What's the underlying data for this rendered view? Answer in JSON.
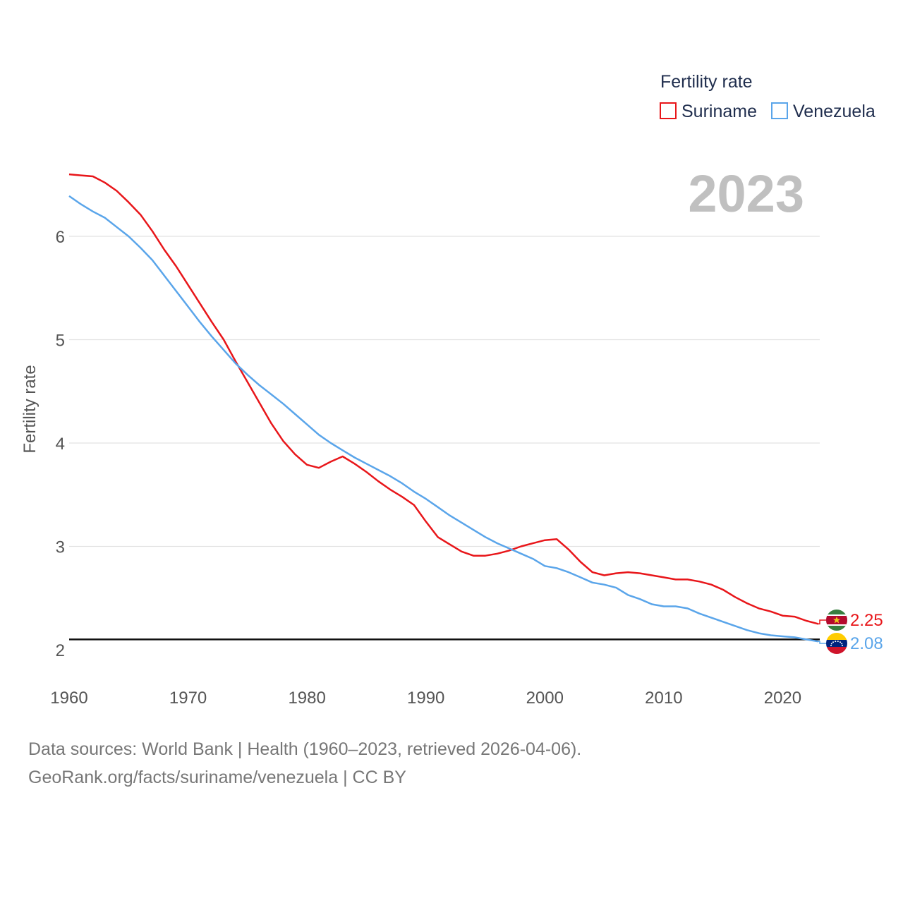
{
  "chart_data": {
    "type": "line",
    "title": "Fertility rate",
    "xlabel": "",
    "ylabel": "Fertility rate",
    "highlight_year": "2023",
    "xlim": [
      1960,
      2023
    ],
    "ylim": [
      1.8,
      6.6
    ],
    "x_ticks": [
      1960,
      1970,
      1980,
      1990,
      2000,
      2010,
      2020
    ],
    "y_ticks": [
      2,
      3,
      4,
      5,
      6
    ],
    "reference_line": {
      "y": 2.1
    },
    "legend_title": "Fertility rate",
    "legend_placement": "top-right",
    "x": [
      1960,
      1961,
      1962,
      1963,
      1964,
      1965,
      1966,
      1967,
      1968,
      1969,
      1970,
      1971,
      1972,
      1973,
      1974,
      1975,
      1976,
      1977,
      1978,
      1979,
      1980,
      1981,
      1982,
      1983,
      1984,
      1985,
      1986,
      1987,
      1988,
      1989,
      1990,
      1991,
      1992,
      1993,
      1994,
      1995,
      1996,
      1997,
      1998,
      1999,
      2000,
      2001,
      2002,
      2003,
      2004,
      2005,
      2006,
      2007,
      2008,
      2009,
      2010,
      2011,
      2012,
      2013,
      2014,
      2015,
      2016,
      2017,
      2018,
      2019,
      2020,
      2021,
      2022,
      2023
    ],
    "series": [
      {
        "name": "Suriname",
        "color": "#e8161a",
        "end_label": "2.25",
        "values": [
          6.6,
          6.59,
          6.58,
          6.52,
          6.44,
          6.33,
          6.21,
          6.05,
          5.87,
          5.71,
          5.53,
          5.35,
          5.17,
          5.0,
          4.79,
          4.59,
          4.39,
          4.19,
          4.02,
          3.89,
          3.79,
          3.76,
          3.82,
          3.87,
          3.8,
          3.72,
          3.63,
          3.55,
          3.48,
          3.4,
          3.24,
          3.09,
          3.02,
          2.95,
          2.91,
          2.91,
          2.93,
          2.96,
          3.0,
          3.03,
          3.06,
          3.07,
          2.97,
          2.85,
          2.75,
          2.72,
          2.74,
          2.75,
          2.74,
          2.72,
          2.7,
          2.68,
          2.68,
          2.66,
          2.63,
          2.58,
          2.51,
          2.45,
          2.4,
          2.37,
          2.33,
          2.32,
          2.28,
          2.25
        ]
      },
      {
        "name": "Venezuela",
        "color": "#5aa5ea",
        "end_label": "2.08",
        "values": [
          6.39,
          6.31,
          6.24,
          6.18,
          6.09,
          6.0,
          5.89,
          5.77,
          5.62,
          5.47,
          5.32,
          5.17,
          5.03,
          4.9,
          4.77,
          4.66,
          4.56,
          4.47,
          4.38,
          4.28,
          4.18,
          4.08,
          4.0,
          3.93,
          3.86,
          3.8,
          3.74,
          3.68,
          3.61,
          3.53,
          3.46,
          3.38,
          3.3,
          3.23,
          3.16,
          3.09,
          3.03,
          2.98,
          2.93,
          2.88,
          2.81,
          2.79,
          2.75,
          2.7,
          2.65,
          2.63,
          2.6,
          2.53,
          2.49,
          2.44,
          2.42,
          2.42,
          2.4,
          2.35,
          2.31,
          2.27,
          2.23,
          2.19,
          2.16,
          2.14,
          2.13,
          2.12,
          2.1,
          2.08
        ]
      }
    ]
  },
  "footer": {
    "line1": "Data sources: World Bank | Health (1960–2023, retrieved 2026-04-06).",
    "line2": "GeoRank.org/facts/suriname/venezuela | CC BY"
  },
  "colors": {
    "suriname_flag": [
      "#377e3f",
      "#b40a2d",
      "#ecc81d"
    ],
    "venezuela_flag": [
      "#ffcc00",
      "#00247d",
      "#cf142b"
    ]
  }
}
